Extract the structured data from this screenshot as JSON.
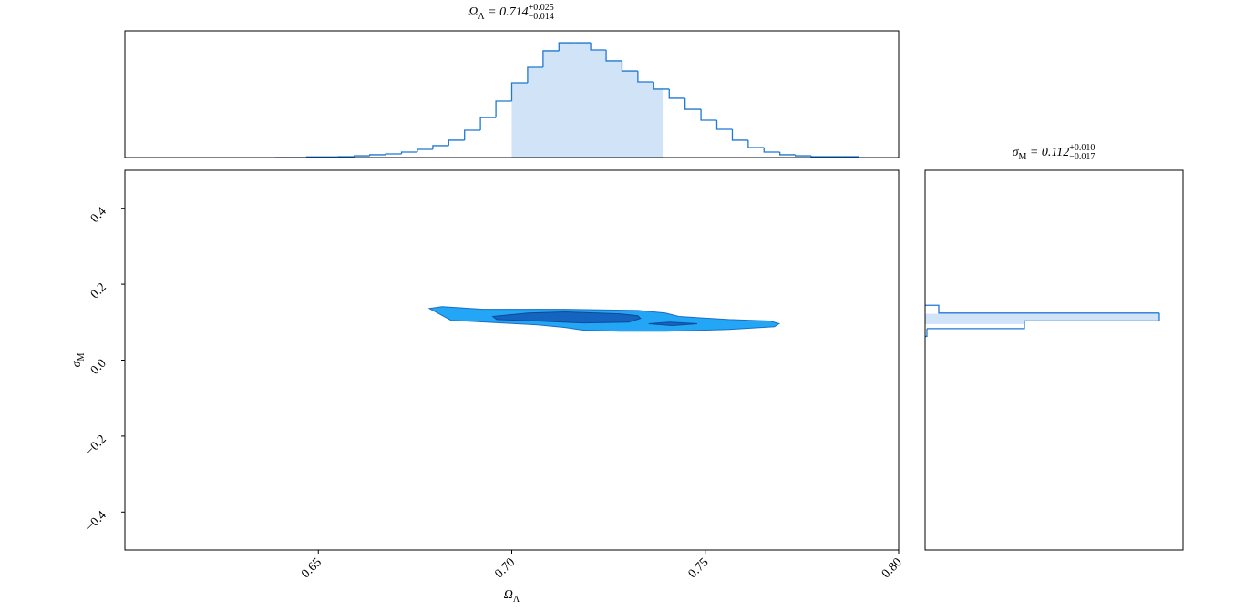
{
  "chart_data": [
    {
      "type": "histogram",
      "orientation": "vertical",
      "title": [
        {
          "text": "Ω"
        },
        {
          "text": "Λ",
          "pos": "sub"
        },
        {
          "text": " = 0.714"
        },
        {
          "text": "+0.025",
          "pos": "sup"
        },
        {
          "text": "−0.014",
          "pos": "sub"
        }
      ],
      "xlim": [
        0.6,
        0.8
      ],
      "ylim": [
        0,
        1
      ],
      "bins": [
        0.6389,
        0.643,
        0.647,
        0.6511,
        0.6552,
        0.6593,
        0.6633,
        0.6674,
        0.6715,
        0.6756,
        0.6796,
        0.6837,
        0.6878,
        0.6919,
        0.6959,
        0.7,
        0.7041,
        0.7081,
        0.7122,
        0.7163,
        0.7204,
        0.7244,
        0.7285,
        0.7326,
        0.7367,
        0.7407,
        0.7448,
        0.7489,
        0.753,
        0.757,
        0.7611,
        0.7652,
        0.7693,
        0.7733,
        0.7774,
        0.7815,
        0.7856,
        0.7896
      ],
      "counts": [
        0,
        0,
        0.005,
        0.005,
        0.007,
        0.014,
        0.022,
        0.029,
        0.043,
        0.065,
        0.094,
        0.137,
        0.216,
        0.316,
        0.446,
        0.59,
        0.712,
        0.842,
        0.906,
        0.906,
        0.849,
        0.763,
        0.683,
        0.597,
        0.54,
        0.468,
        0.381,
        0.295,
        0.223,
        0.137,
        0.079,
        0.043,
        0.022,
        0.014,
        0.007,
        0.007,
        0.007
      ],
      "shade": [
        0.7,
        0.739
      ],
      "color": "#1f78d4",
      "shade_color": "#d1e3f6"
    },
    {
      "type": "contour",
      "xlabel": [
        {
          "text": "Ω"
        },
        {
          "text": "Λ",
          "pos": "sub"
        }
      ],
      "ylabel": [
        {
          "text": "σ"
        },
        {
          "text": "M",
          "pos": "sub"
        }
      ],
      "xlim": [
        0.6,
        0.8
      ],
      "ylim": [
        -0.5,
        0.5
      ],
      "xticks": [
        0.65,
        {
          "value": 0.7,
          "label": "0.70"
        },
        0.75,
        {
          "value": 0.8,
          "label": "0.80"
        }
      ],
      "yticks": [
        {
          "value": -0.4,
          "label": "−0.4"
        },
        {
          "value": -0.2,
          "label": "−0.2"
        },
        {
          "value": 0,
          "label": "0.0"
        },
        0.2,
        0.4
      ],
      "contours": [
        {
          "color": "#22a6f5",
          "edgecolor": "#1a6fc4",
          "x": [
            0.6787,
            0.682,
            0.6926,
            0.7138,
            0.7326,
            0.7397,
            0.7432,
            0.7561,
            0.7667,
            0.7691,
            0.7679,
            0.7561,
            0.7397,
            0.7279,
            0.7185,
            0.7138,
            0.7067,
            0.6973,
            0.6843
          ],
          "y": [
            0.136,
            0.141,
            0.134,
            0.134,
            0.131,
            0.124,
            0.115,
            0.107,
            0.103,
            0.096,
            0.088,
            0.081,
            0.076,
            0.076,
            0.079,
            0.086,
            0.093,
            0.098,
            0.105
          ]
        },
        {
          "color": "#1565c0",
          "edgecolor": "#0d4a94",
          "x": [
            0.6951,
            0.7043,
            0.7138,
            0.7279,
            0.7326,
            0.7333,
            0.7302,
            0.7185,
            0.7067,
            0.6961
          ],
          "y": [
            0.115,
            0.124,
            0.127,
            0.122,
            0.117,
            0.11,
            0.1,
            0.098,
            0.103,
            0.107
          ]
        },
        {
          "color": "#1565c0",
          "edgecolor": "#0d4a94",
          "x": [
            0.7354,
            0.7408,
            0.7479,
            0.7414
          ],
          "y": [
            0.096,
            0.1,
            0.096,
            0.091
          ]
        }
      ]
    },
    {
      "type": "histogram",
      "orientation": "horizontal",
      "title": [
        {
          "text": "σ"
        },
        {
          "text": "M",
          "pos": "sub"
        },
        {
          "text": " = 0.112"
        },
        {
          "text": "+0.010",
          "pos": "sup"
        },
        {
          "text": "−0.017",
          "pos": "sub"
        }
      ],
      "xlim": [
        0,
        1
      ],
      "ylim": [
        -0.5,
        0.5
      ],
      "bins": [
        0.0625,
        0.083,
        0.1035,
        0.124,
        0.1445
      ],
      "counts": [
        0.007,
        0.385,
        0.908,
        0.053
      ],
      "shade": [
        0.095,
        0.122
      ],
      "color": "#1f78d4",
      "shade_color": "#d1e3f6"
    }
  ]
}
